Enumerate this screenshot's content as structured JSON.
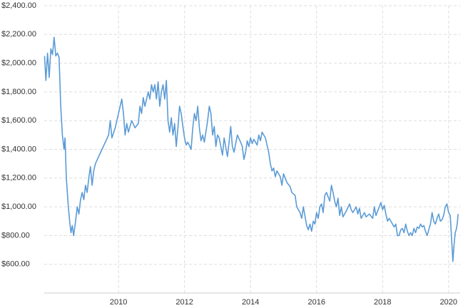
{
  "chart_data": {
    "type": "line",
    "x": [
      2007.76,
      2007.8,
      2007.85,
      2007.9,
      2007.95,
      2008.0,
      2008.05,
      2008.1,
      2008.15,
      2008.2,
      2008.25,
      2008.3,
      2008.35,
      2008.38,
      2008.42,
      2008.48,
      2008.52,
      2008.56,
      2008.6,
      2008.64,
      2008.7,
      2008.75,
      2008.8,
      2008.85,
      2008.9,
      2008.95,
      2009.0,
      2009.05,
      2009.1,
      2009.15,
      2009.2,
      2009.25,
      2009.3,
      2009.4,
      2009.5,
      2009.6,
      2009.7,
      2009.75,
      2009.8,
      2009.9,
      2010.0,
      2010.05,
      2010.1,
      2010.15,
      2010.2,
      2010.25,
      2010.3,
      2010.4,
      2010.5,
      2010.6,
      2010.65,
      2010.7,
      2010.75,
      2010.8,
      2010.9,
      2010.95,
      2011.0,
      2011.05,
      2011.1,
      2011.15,
      2011.2,
      2011.25,
      2011.3,
      2011.35,
      2011.4,
      2011.45,
      2011.5,
      2011.55,
      2011.6,
      2011.65,
      2011.7,
      2011.75,
      2011.8,
      2011.85,
      2011.9,
      2011.95,
      2012.0,
      2012.05,
      2012.1,
      2012.2,
      2012.25,
      2012.3,
      2012.35,
      2012.4,
      2012.45,
      2012.5,
      2012.55,
      2012.6,
      2012.7,
      2012.75,
      2012.8,
      2012.85,
      2012.9,
      2012.95,
      2013.0,
      2013.05,
      2013.1,
      2013.15,
      2013.2,
      2013.3,
      2013.35,
      2013.4,
      2013.45,
      2013.5,
      2013.6,
      2013.7,
      2013.75,
      2013.8,
      2013.85,
      2013.9,
      2013.95,
      2014.0,
      2014.05,
      2014.1,
      2014.2,
      2014.25,
      2014.3,
      2014.35,
      2014.45,
      2014.55,
      2014.6,
      2014.65,
      2014.7,
      2014.75,
      2014.8,
      2014.9,
      2014.95,
      2015.0,
      2015.1,
      2015.2,
      2015.25,
      2015.35,
      2015.4,
      2015.5,
      2015.55,
      2015.6,
      2015.7,
      2015.75,
      2015.8,
      2015.85,
      2015.9,
      2015.95,
      2016.0,
      2016.05,
      2016.1,
      2016.15,
      2016.2,
      2016.25,
      2016.3,
      2016.4,
      2016.45,
      2016.5,
      2016.55,
      2016.6,
      2016.65,
      2016.7,
      2016.75,
      2016.8,
      2016.9,
      2017.0,
      2017.05,
      2017.1,
      2017.2,
      2017.25,
      2017.3,
      2017.35,
      2017.45,
      2017.5,
      2017.6,
      2017.7,
      2017.75,
      2017.8,
      2017.9,
      2017.95,
      2018.0,
      2018.05,
      2018.1,
      2018.15,
      2018.2,
      2018.3,
      2018.35,
      2018.4,
      2018.45,
      2018.5,
      2018.55,
      2018.6,
      2018.65,
      2018.7,
      2018.75,
      2018.8,
      2018.85,
      2018.9,
      2018.95,
      2019.0,
      2019.05,
      2019.1,
      2019.15,
      2019.2,
      2019.25,
      2019.3,
      2019.35,
      2019.4,
      2019.45,
      2019.5,
      2019.55,
      2019.6,
      2019.65,
      2019.7,
      2019.75,
      2019.8,
      2019.85,
      2019.9,
      2019.95,
      2020.0,
      2020.05,
      2020.1,
      2020.13,
      2020.16,
      2020.2,
      2020.23,
      2020.26,
      2020.29
    ],
    "values": [
      2050,
      1880,
      2070,
      1900,
      2100,
      2060,
      2180,
      2050,
      2070,
      2040,
      1700,
      1500,
      1400,
      1480,
      1200,
      1000,
      900,
      820,
      870,
      800,
      900,
      1000,
      950,
      1050,
      1100,
      1050,
      1150,
      1100,
      1200,
      1280,
      1150,
      1250,
      1300,
      1350,
      1400,
      1450,
      1500,
      1600,
      1480,
      1550,
      1650,
      1700,
      1750,
      1650,
      1500,
      1580,
      1520,
      1600,
      1550,
      1580,
      1700,
      1650,
      1760,
      1700,
      1800,
      1750,
      1850,
      1800,
      1850,
      1750,
      1870,
      1700,
      1800,
      1850,
      1750,
      1880,
      1600,
      1520,
      1620,
      1500,
      1580,
      1420,
      1550,
      1700,
      1650,
      1560,
      1480,
      1430,
      1450,
      1400,
      1550,
      1650,
      1600,
      1700,
      1550,
      1460,
      1500,
      1450,
      1600,
      1700,
      1650,
      1500,
      1560,
      1420,
      1500,
      1480,
      1420,
      1360,
      1480,
      1350,
      1450,
      1560,
      1420,
      1380,
      1500,
      1450,
      1420,
      1330,
      1380,
      1460,
      1420,
      1480,
      1440,
      1470,
      1430,
      1500,
      1460,
      1520,
      1480,
      1380,
      1300,
      1250,
      1270,
      1210,
      1250,
      1210,
      1150,
      1230,
      1170,
      1140,
      1100,
      1080,
      1000,
      960,
      920,
      1000,
      870,
      840,
      880,
      830,
      900,
      880,
      960,
      920,
      1000,
      1020,
      960,
      1080,
      1100,
      1040,
      1150,
      1100,
      1040,
      1000,
      1060,
      940,
      1000,
      930,
      970,
      1020,
      980,
      960,
      1000,
      950,
      990,
      920,
      960,
      930,
      950,
      920,
      1000,
      940,
      1000,
      1030,
      980,
      1010,
      950,
      900,
      920,
      880,
      860,
      880,
      800,
      800,
      840,
      850,
      820,
      880,
      830,
      800,
      820,
      800,
      850,
      820,
      860,
      850,
      880,
      860,
      870,
      830,
      800,
      840,
      880,
      960,
      900,
      880,
      920,
      950,
      900,
      910,
      940,
      1000,
      1020,
      960,
      940,
      740,
      620,
      720,
      820,
      840,
      880,
      950
    ],
    "color": "#5b9bd6",
    "xlim": [
      2007.75,
      2020.35
    ],
    "xticks": [
      2010,
      2012,
      2014,
      2016,
      2018,
      2020
    ],
    "ylim": [
      400,
      2400
    ],
    "yticks": [
      {
        "value": 600,
        "label": "$600.00"
      },
      {
        "value": 800,
        "label": "$800.00"
      },
      {
        "value": 1000,
        "label": "$1,000.00"
      },
      {
        "value": 1200,
        "label": "$1,200.00"
      },
      {
        "value": 1400,
        "label": "$1,400.00"
      },
      {
        "value": 1600,
        "label": "$1,600.00"
      },
      {
        "value": 1800,
        "label": "$1,800.00"
      },
      {
        "value": 2000,
        "label": "$2,000.00"
      },
      {
        "value": 2200,
        "label": "$2,200.00"
      },
      {
        "value": 2400,
        "label": "$2,400.00"
      }
    ],
    "grid": true
  }
}
